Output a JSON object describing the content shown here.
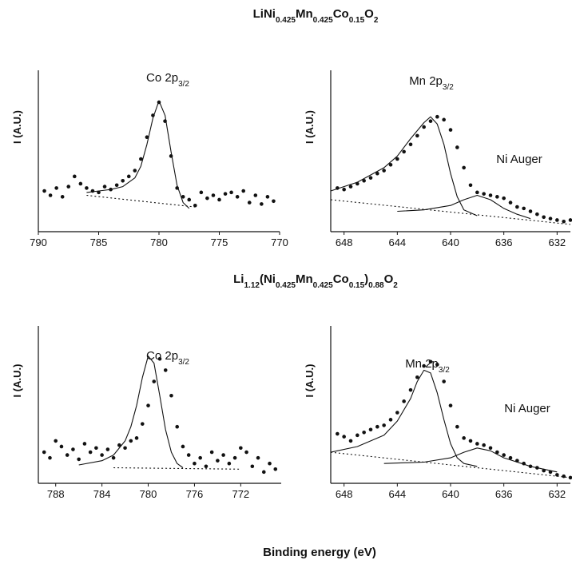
{
  "headings": [
    {
      "parts": [
        "LiNi",
        "0.425",
        "Mn",
        "0.425",
        "Co",
        "0.15",
        "O",
        "2"
      ]
    },
    {
      "parts": [
        "Li",
        "1.12",
        "(Ni",
        "0.425",
        "Mn",
        "0.425",
        "Co",
        "0.15",
        ")",
        "0.88",
        "O",
        "2"
      ]
    }
  ],
  "xlabel": "Binding energy (eV)",
  "chart_data": [
    {
      "type": "scatter",
      "ylabel": "I (A.U.)",
      "annotations": [
        {
          "parts": [
            "Co 2p",
            "3/2"
          ]
        }
      ],
      "xlim": [
        790,
        770
      ],
      "xticks": [
        790,
        785,
        780,
        775,
        770
      ],
      "ylim": [
        0,
        100
      ],
      "series": [
        {
          "style": "markers",
          "color": "#111",
          "x": [
            789.5,
            789,
            788.5,
            788,
            787.5,
            787,
            786.5,
            786,
            785.5,
            785,
            784.5,
            784,
            783.5,
            783,
            782.5,
            782,
            781.5,
            781,
            780.5,
            780,
            779.5,
            779,
            778.5,
            778,
            777.5,
            777,
            776.5,
            776,
            775.5,
            775,
            774.5,
            774,
            773.5,
            773,
            772.5,
            772,
            771.5,
            771,
            770.5
          ],
          "values": [
            28,
            25,
            30,
            24,
            31,
            38,
            33,
            30,
            28,
            27,
            31,
            29,
            32,
            35,
            38,
            42,
            50,
            65,
            80,
            89,
            76,
            52,
            30,
            24,
            22,
            18,
            27,
            23,
            25,
            22,
            26,
            27,
            24,
            28,
            20,
            25,
            19,
            24,
            21
          ]
        },
        {
          "style": "line",
          "color": "#111",
          "x": [
            786,
            784,
            783,
            782,
            781.5,
            781,
            780.5,
            780,
            779.5,
            779,
            778.5,
            778,
            777.5
          ],
          "values": [
            27,
            29,
            31,
            37,
            45,
            60,
            78,
            90,
            80,
            55,
            32,
            20,
            16
          ]
        },
        {
          "style": "dotted",
          "color": "#111",
          "x": [
            786,
            777
          ],
          "values": [
            25,
            17
          ]
        }
      ]
    },
    {
      "type": "scatter",
      "ylabel": "I (A.U.)",
      "annotations": [
        {
          "parts": [
            "Mn 2p",
            "3/2"
          ]
        },
        {
          "parts": [
            "Ni Auger"
          ]
        }
      ],
      "xlim": [
        649,
        631
      ],
      "xticks": [
        648,
        644,
        640,
        636,
        632
      ],
      "ylim": [
        0,
        100
      ],
      "series": [
        {
          "style": "markers",
          "color": "#111",
          "x": [
            648.5,
            648,
            647.5,
            647,
            646.5,
            646,
            645.5,
            645,
            644.5,
            644,
            643.5,
            643,
            642.5,
            642,
            641.5,
            641,
            640.5,
            640,
            639.5,
            639,
            638.5,
            638,
            637.5,
            637,
            636.5,
            636,
            635.5,
            635,
            634.5,
            634,
            633.5,
            633,
            632.5,
            632,
            631.5,
            631
          ],
          "values": [
            30,
            29,
            31,
            33,
            35,
            37,
            40,
            42,
            46,
            50,
            55,
            60,
            66,
            72,
            76,
            79,
            77,
            70,
            58,
            44,
            32,
            27,
            26,
            25,
            24,
            23,
            20,
            17,
            16,
            14,
            12,
            10,
            9,
            8,
            7,
            8
          ]
        },
        {
          "style": "line",
          "color": "#111",
          "x": [
            649,
            647,
            645,
            644,
            643,
            642,
            641.5,
            641,
            640.5,
            640,
            639.5,
            639,
            638
          ],
          "values": [
            28,
            34,
            44,
            52,
            64,
            75,
            79,
            74,
            60,
            40,
            24,
            15,
            11
          ]
        },
        {
          "style": "line",
          "color": "#111",
          "x": [
            644,
            642,
            640,
            639,
            638,
            637,
            636,
            635,
            634
          ],
          "values": [
            14,
            15,
            18,
            22,
            25,
            22,
            16,
            12,
            9
          ]
        },
        {
          "style": "dotted",
          "color": "#111",
          "x": [
            649,
            631
          ],
          "values": [
            22,
            5
          ]
        }
      ]
    },
    {
      "type": "scatter",
      "ylabel": "I (A.U.)",
      "annotations": [
        {
          "parts": [
            "Co 2p",
            "3/2"
          ]
        }
      ],
      "xlim": [
        789.5,
        768.5
      ],
      "xticks": [
        788,
        784,
        780,
        776,
        772
      ],
      "ylim": [
        0,
        100
      ],
      "series": [
        {
          "style": "markers",
          "color": "#111",
          "x": [
            789,
            788.5,
            788,
            787.5,
            787,
            786.5,
            786,
            785.5,
            785,
            784.5,
            784,
            783.5,
            783,
            782.5,
            782,
            781.5,
            781,
            780.5,
            780,
            779.5,
            779,
            778.5,
            778,
            777.5,
            777,
            776.5,
            776,
            775.5,
            775,
            774.5,
            774,
            773.5,
            773,
            772.5,
            772,
            771.5,
            771,
            770.5,
            770,
            769.5,
            769
          ],
          "values": [
            22,
            18,
            30,
            26,
            20,
            24,
            17,
            28,
            22,
            25,
            20,
            24,
            18,
            27,
            25,
            30,
            32,
            42,
            55,
            72,
            88,
            80,
            62,
            40,
            26,
            20,
            14,
            18,
            12,
            22,
            16,
            20,
            14,
            18,
            25,
            22,
            12,
            18,
            8,
            14,
            10
          ]
        },
        {
          "style": "line",
          "color": "#111",
          "x": [
            786,
            784,
            783,
            782,
            781.5,
            781,
            780.5,
            780,
            779.5,
            779,
            778.5,
            778,
            777.5,
            777
          ],
          "values": [
            13,
            16,
            20,
            30,
            40,
            55,
            75,
            90,
            85,
            62,
            38,
            22,
            14,
            11
          ]
        },
        {
          "style": "dotted",
          "color": "#111",
          "x": [
            783,
            772
          ],
          "values": [
            11,
            10
          ]
        }
      ]
    },
    {
      "type": "scatter",
      "ylabel": "I (A.U.)",
      "annotations": [
        {
          "parts": [
            "Mn 2p",
            "3/2"
          ]
        },
        {
          "parts": [
            "Ni Auger"
          ]
        }
      ],
      "xlim": [
        649,
        631
      ],
      "xticks": [
        648,
        644,
        640,
        636,
        632
      ],
      "ylim": [
        0,
        100
      ],
      "series": [
        {
          "style": "markers",
          "color": "#111",
          "x": [
            648.5,
            648,
            647.5,
            647,
            646.5,
            646,
            645.5,
            645,
            644.5,
            644,
            643.5,
            643,
            642.5,
            642,
            641.5,
            641,
            640.5,
            640,
            639.5,
            639,
            638.5,
            638,
            637.5,
            637,
            636.5,
            636,
            635.5,
            635,
            634.5,
            634,
            633.5,
            633,
            632.5,
            632,
            631.5,
            631
          ],
          "values": [
            35,
            33,
            30,
            34,
            36,
            38,
            40,
            41,
            45,
            50,
            58,
            66,
            75,
            83,
            86,
            84,
            72,
            55,
            40,
            32,
            30,
            28,
            27,
            25,
            22,
            20,
            18,
            16,
            14,
            12,
            11,
            9,
            8,
            6,
            5,
            4
          ]
        },
        {
          "style": "line",
          "color": "#111",
          "x": [
            649,
            647,
            645,
            644,
            643,
            642.5,
            642,
            641.5,
            641,
            640.5,
            640,
            639.5,
            639,
            638
          ],
          "values": [
            22,
            26,
            34,
            44,
            60,
            72,
            80,
            78,
            64,
            45,
            28,
            18,
            14,
            12
          ]
        },
        {
          "style": "line",
          "color": "#111",
          "x": [
            645,
            642,
            640,
            639,
            638,
            637,
            636,
            634,
            632
          ],
          "values": [
            14,
            15,
            18,
            22,
            25,
            23,
            18,
            12,
            8
          ]
        },
        {
          "style": "dotted",
          "color": "#111",
          "x": [
            649,
            631
          ],
          "values": [
            22,
            4
          ]
        }
      ]
    }
  ]
}
